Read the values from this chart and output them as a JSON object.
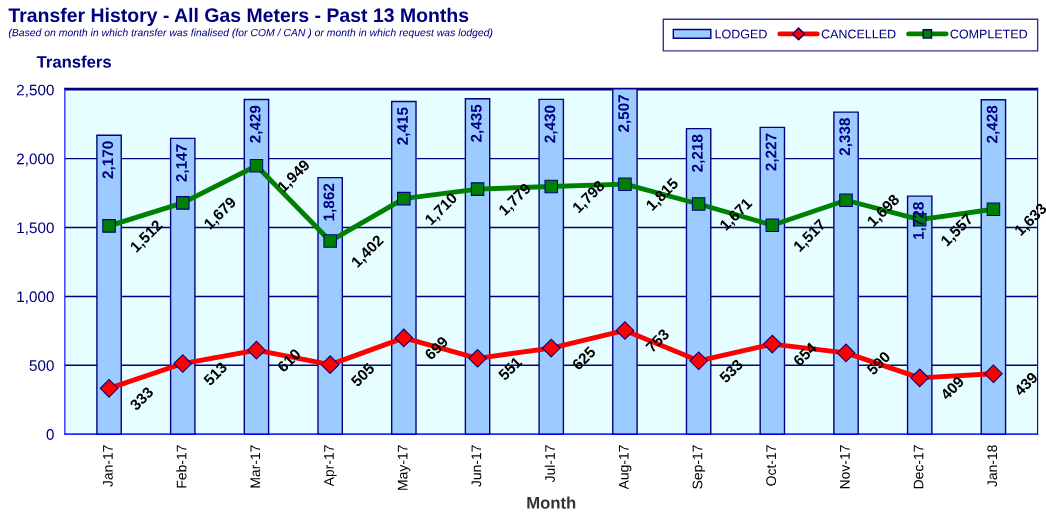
{
  "chart_data": {
    "type": "bar",
    "title": "Transfer History - All Gas Meters - Past 13 Months",
    "subtitle": "(Based on month in which transfer was finalised (for COM / CAN ) or month in which request was lodged)",
    "xlabel": "Month",
    "ylabel": "Transfers",
    "categories": [
      "Jan-17",
      "Feb-17",
      "Mar-17",
      "Apr-17",
      "May-17",
      "Jun-17",
      "Jul-17",
      "Aug-17",
      "Sep-17",
      "Oct-17",
      "Nov-17",
      "Dec-17",
      "Jan-18"
    ],
    "series": [
      {
        "name": "LODGED",
        "color": "#9ccbff",
        "values": [
          2170,
          2147,
          2429,
          1862,
          2415,
          2435,
          2430,
          2507,
          2218,
          2227,
          2338,
          1728,
          2428
        ],
        "value_labels": [
          "2,170",
          "2,147",
          "2,429",
          "1,862",
          "2,415",
          "2,435",
          "2,430",
          "2,507",
          "2,218",
          "2,227",
          "2,338",
          "1,728",
          "2,428"
        ]
      },
      {
        "name": "CANCELLED",
        "type": "line",
        "color": "#ff0000",
        "marker": "diamond",
        "values": [
          333,
          513,
          610,
          505,
          699,
          551,
          625,
          753,
          533,
          654,
          590,
          409,
          439
        ],
        "value_labels": [
          "333",
          "513",
          "610",
          "505",
          "699",
          "551",
          "625",
          "753",
          "533",
          "654",
          "590",
          "409",
          "439"
        ]
      },
      {
        "name": "COMPLETED",
        "type": "line",
        "color": "#008000",
        "marker": "square",
        "values": [
          1512,
          1679,
          1949,
          1402,
          1710,
          1779,
          1798,
          1815,
          1671,
          1517,
          1698,
          1557,
          1633
        ],
        "value_labels": [
          "1,512",
          "1,679",
          "1,949",
          "1,402",
          "1,710",
          "1,779",
          "1,798",
          "1,815",
          "1,671",
          "1,517",
          "1,698",
          "1,557",
          "1,633"
        ]
      }
    ],
    "ylim": [
      0,
      2510
    ],
    "yticks": [
      {
        "value": 0,
        "label": "0"
      },
      {
        "value": 500,
        "label": "500"
      },
      {
        "value": 1000,
        "label": "1,000"
      },
      {
        "value": 1500,
        "label": "1,500"
      },
      {
        "value": 2000,
        "label": "2,000"
      },
      {
        "value": 2500,
        "label": "2,500"
      }
    ],
    "grid": "y",
    "legend": "top right"
  }
}
